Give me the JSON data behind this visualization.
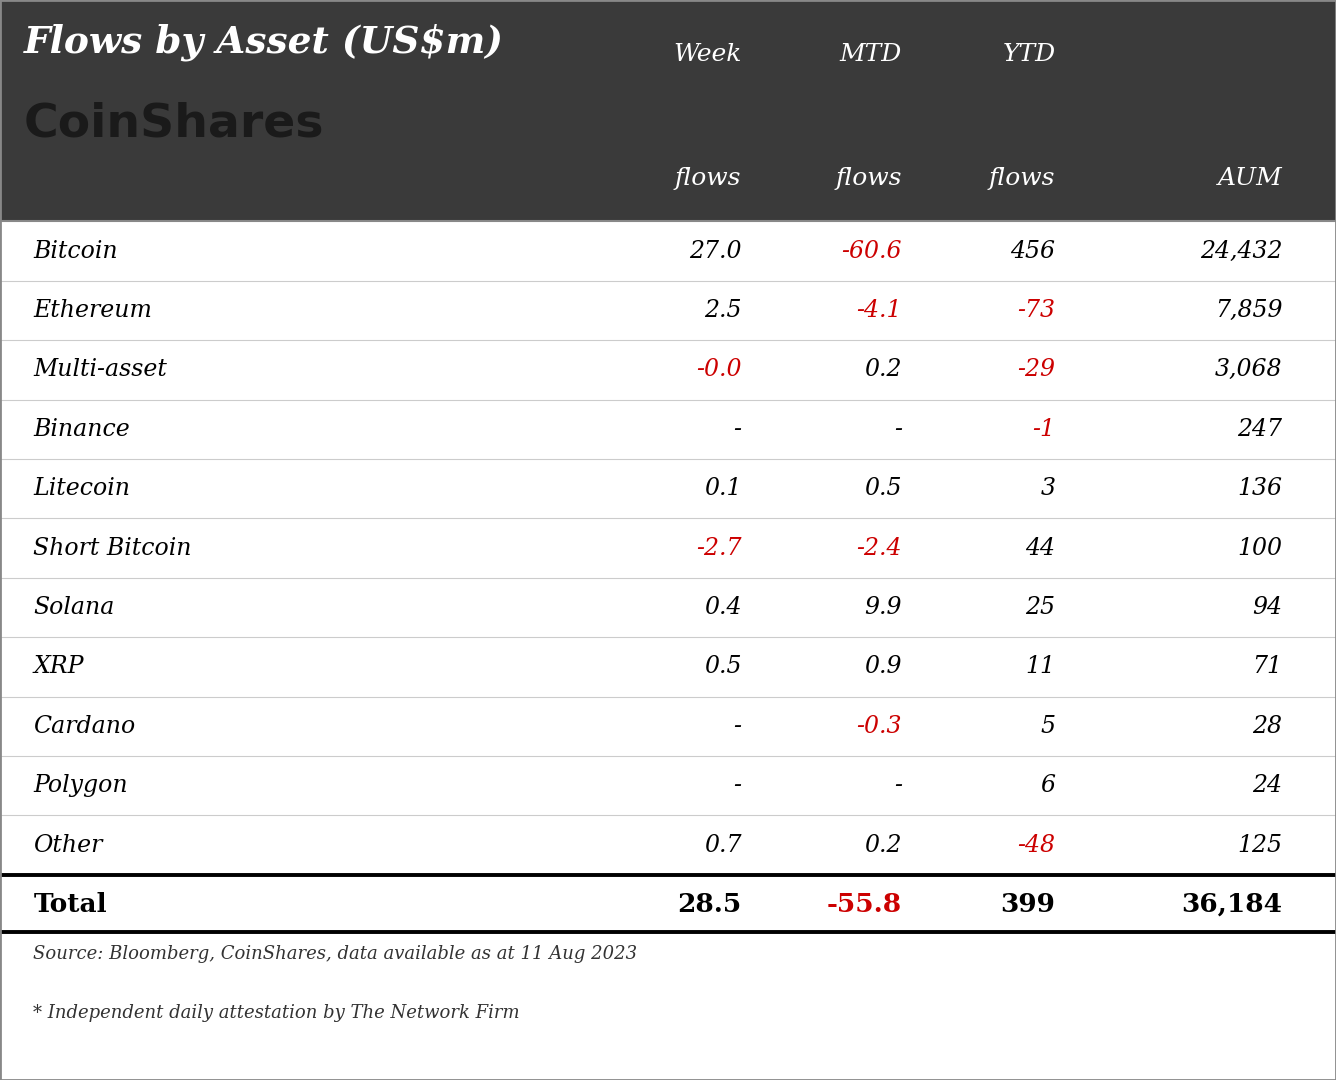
{
  "title": "Flows by Asset (US$m)",
  "logo_text": "CoinShares",
  "header_bg_color": "#3a3a3a",
  "table_bg_color": "#ffffff",
  "title_color": "#ffffff",
  "logo_color": "#1a1a1a",
  "header_line1": [
    "Week",
    "MTD",
    "YTD",
    ""
  ],
  "header_line2": [
    "flows",
    "flows",
    "flows",
    "AUM"
  ],
  "rows": [
    {
      "asset": "Bitcoin",
      "week": "27.0",
      "mtd": "-60.6",
      "ytd": "456",
      "aum": "24,432"
    },
    {
      "asset": "Ethereum",
      "week": "2.5",
      "mtd": "-4.1",
      "ytd": "-73",
      "aum": "7,859"
    },
    {
      "asset": "Multi-asset",
      "week": "-0.0",
      "mtd": "0.2",
      "ytd": "-29",
      "aum": "3,068"
    },
    {
      "asset": "Binance",
      "week": "-",
      "mtd": "-",
      "ytd": "-1",
      "aum": "247"
    },
    {
      "asset": "Litecoin",
      "week": "0.1",
      "mtd": "0.5",
      "ytd": "3",
      "aum": "136"
    },
    {
      "asset": "Short Bitcoin",
      "week": "-2.7",
      "mtd": "-2.4",
      "ytd": "44",
      "aum": "100"
    },
    {
      "asset": "Solana",
      "week": "0.4",
      "mtd": "9.9",
      "ytd": "25",
      "aum": "94"
    },
    {
      "asset": "XRP",
      "week": "0.5",
      "mtd": "0.9",
      "ytd": "11",
      "aum": "71"
    },
    {
      "asset": "Cardano",
      "week": "-",
      "mtd": "-0.3",
      "ytd": "5",
      "aum": "28"
    },
    {
      "asset": "Polygon",
      "week": "-",
      "mtd": "-",
      "ytd": "6",
      "aum": "24"
    },
    {
      "asset": "Other",
      "week": "0.7",
      "mtd": "0.2",
      "ytd": "-48",
      "aum": "125"
    }
  ],
  "total_row": {
    "asset": "Total",
    "week": "28.5",
    "mtd": "-55.8",
    "ytd": "399",
    "aum": "36,184"
  },
  "negative_color": "#cc0000",
  "positive_color": "#000000",
  "footer1": "Source: Bloomberg, CoinShares, data available as at 11 Aug 2023",
  "footer2": "* Independent daily attestation by The Network Firm"
}
